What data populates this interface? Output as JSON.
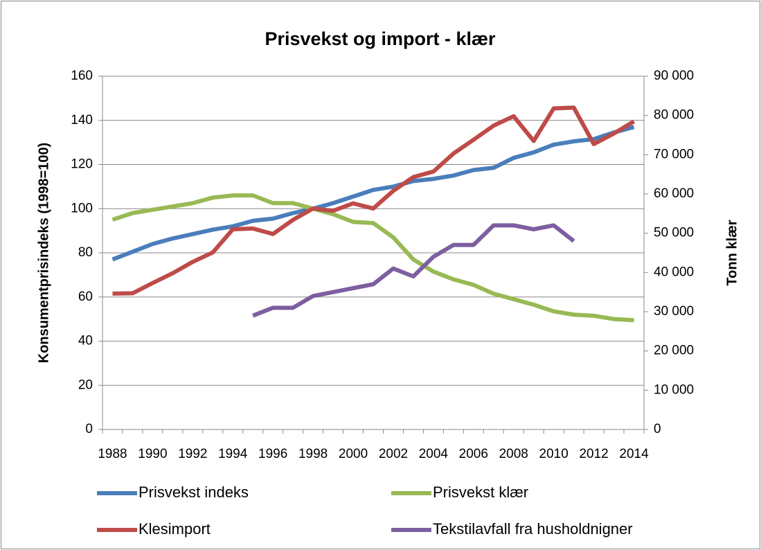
{
  "chart_data": {
    "type": "line",
    "title": "Prisvekst og import - klær",
    "ylabel": "Konsumentprisindeks (1998=100)",
    "y2label": "Tonn klær",
    "categories": [
      "1988",
      null,
      "1990",
      null,
      "1992",
      null,
      "1994",
      null,
      "1996",
      null,
      "1998",
      null,
      "2000",
      null,
      "2002",
      null,
      "2004",
      null,
      "2006",
      null,
      "2008",
      null,
      "2010",
      null,
      "2012",
      null,
      "2014"
    ],
    "ylim": [
      0,
      160
    ],
    "yticks": [
      0,
      20,
      40,
      60,
      80,
      100,
      120,
      140,
      160
    ],
    "y2lim": [
      0,
      90000
    ],
    "y2ticks": [
      0,
      {
        "value": 10000,
        "label": "10 000"
      },
      {
        "value": 20000,
        "label": "20 000"
      },
      {
        "value": 30000,
        "label": "30 000"
      },
      {
        "value": 40000,
        "label": "40 000"
      },
      {
        "value": 50000,
        "label": "50 000"
      },
      {
        "value": 60000,
        "label": "60 000"
      },
      {
        "value": 70000,
        "label": "70 000"
      },
      {
        "value": 80000,
        "label": "80 000"
      },
      {
        "value": 90000,
        "label": "90 000"
      }
    ],
    "grid": true,
    "series": [
      {
        "name": "Prisvekst indeks",
        "color": "#4a7ebb",
        "values": [
          77,
          80.5,
          84,
          86.5,
          88.5,
          90.5,
          92,
          94.5,
          95.5,
          98,
          100,
          102.5,
          105.5,
          108.5,
          110,
          112.5,
          113.5,
          115,
          117.5,
          118.5,
          123,
          125.5,
          129,
          130.5,
          131.5,
          134.5,
          137
        ]
      },
      {
        "name": "Prisvekst klær",
        "color": "#98b954",
        "values": [
          95,
          98,
          99.5,
          101,
          102.5,
          105,
          106,
          106,
          102.5,
          102.5,
          100,
          97.5,
          94,
          93.5,
          87,
          77,
          71.5,
          68,
          65.5,
          61.5,
          59,
          56.5,
          53.5,
          52,
          51.5,
          50,
          49.5
        ]
      },
      {
        "name": "Klesimport",
        "color": "#be4b48",
        "axis": "y2",
        "values": [
          34600,
          34700,
          37300,
          39800,
          42700,
          45100,
          51000,
          51200,
          49800,
          53400,
          56300,
          55700,
          57600,
          56300,
          60800,
          64300,
          65700,
          70300,
          73800,
          77400,
          79800,
          73500,
          81800,
          82000,
          72700,
          75400,
          78500
        ]
      },
      {
        "name": "Tekstilavfall fra husholdnigner",
        "color": "#7d5fa0",
        "axis": "y2",
        "values": [
          null,
          null,
          null,
          null,
          null,
          null,
          null,
          29000,
          31000,
          31000,
          34000,
          35000,
          36000,
          37000,
          41000,
          39000,
          44000,
          47000,
          47000,
          52000,
          52000,
          51000,
          52000,
          48000,
          null,
          null,
          null
        ]
      }
    ]
  }
}
